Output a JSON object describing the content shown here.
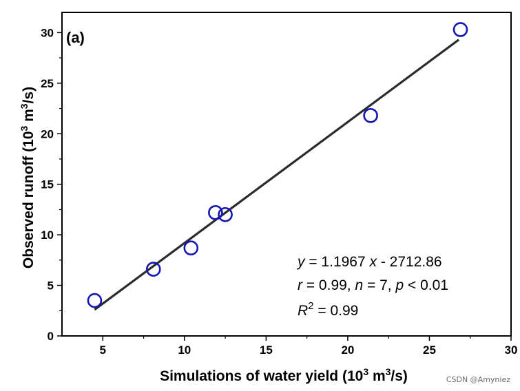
{
  "chart_data": {
    "type": "scatter",
    "panel_label": "(a)",
    "xlabel_main": "Simulations of water yield (10",
    "xlabel_exp": "3",
    "xlabel_mid": " m",
    "xlabel_exp2": "3",
    "xlabel_tail": "/s)",
    "ylabel_main": "Observed runoff (10",
    "ylabel_exp": "3",
    "ylabel_mid": " m",
    "ylabel_exp2": "3",
    "ylabel_tail": "/s)",
    "xlim": [
      2.5,
      30
    ],
    "ylim": [
      0,
      32
    ],
    "x_ticks": [
      5,
      10,
      15,
      20,
      25,
      30
    ],
    "y_ticks": [
      0,
      5,
      10,
      15,
      20,
      25,
      30
    ],
    "points": [
      {
        "x": 4.5,
        "y": 3.5
      },
      {
        "x": 8.1,
        "y": 6.6
      },
      {
        "x": 10.4,
        "y": 8.7
      },
      {
        "x": 11.9,
        "y": 12.2
      },
      {
        "x": 12.5,
        "y": 12.0
      },
      {
        "x": 21.4,
        "y": 21.8
      },
      {
        "x": 26.9,
        "y": 30.3
      }
    ],
    "fit_line": {
      "x_start": 4.5,
      "y_start": 2.6,
      "x_end": 26.8,
      "y_end": 29.3
    },
    "annotation": {
      "line1_var": "y",
      "line1_rest_a": " = 1.1967 ",
      "line1_var2": "x",
      "line1_rest_b": " - 2712.86",
      "line2_r": "r",
      "line2_a": " = 0.99, ",
      "line2_n": "n",
      "line2_b": " = 7, ",
      "line2_p": "p",
      "line2_c": " < 0.01",
      "line3_R": "R",
      "line3_exp": "2",
      "line3_tail": " = 0.99"
    },
    "colors": {
      "marker": "#1515b5",
      "line": "#2b2b2b",
      "axis": "#000000"
    }
  },
  "watermark": "CSDN @Amyniez"
}
